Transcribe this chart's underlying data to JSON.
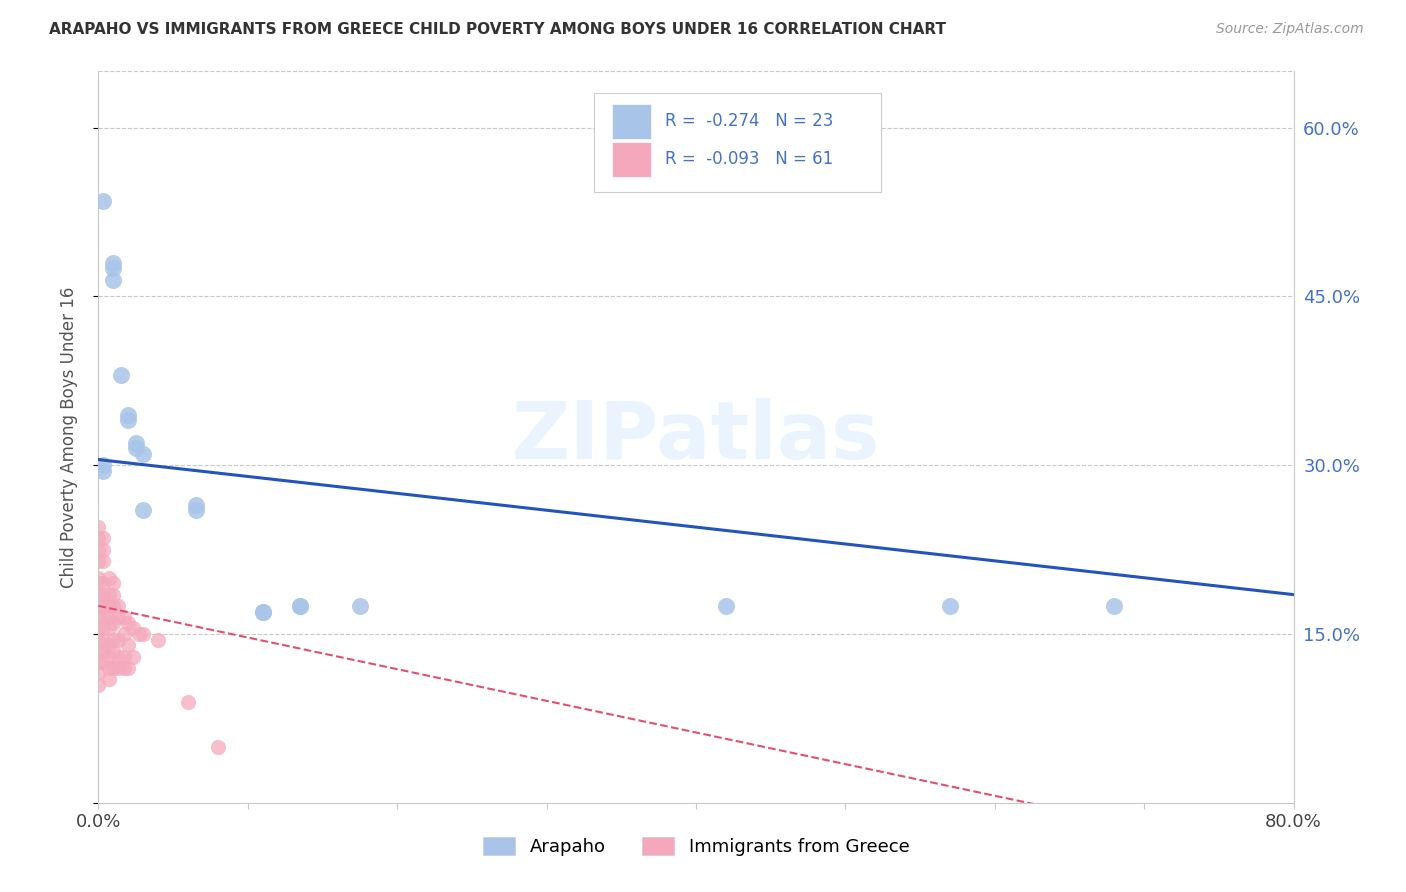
{
  "title": "ARAPAHO VS IMMIGRANTS FROM GREECE CHILD POVERTY AMONG BOYS UNDER 16 CORRELATION CHART",
  "source": "Source: ZipAtlas.com",
  "ylabel": "Child Poverty Among Boys Under 16",
  "xlim": [
    0,
    0.8
  ],
  "ylim": [
    0,
    0.65
  ],
  "ytick_positions": [
    0.0,
    0.15,
    0.3,
    0.45,
    0.6
  ],
  "ytick_labels": [
    "",
    "15.0%",
    "30.0%",
    "45.0%",
    "60.0%"
  ],
  "arapaho_color": "#a8c4e8",
  "greece_color": "#f5a8bc",
  "arapaho_line_color": "#2255bb",
  "greece_line_color": "#e05070",
  "arapaho_R": -0.274,
  "arapaho_N": 23,
  "greece_R": -0.093,
  "greece_N": 61,
  "watermark": "ZIPatlas",
  "background_color": "#ffffff",
  "grid_color": "#c8c8c8",
  "arapaho_x": [
    0.003,
    0.01,
    0.01,
    0.01,
    0.015,
    0.02,
    0.02,
    0.025,
    0.025,
    0.03,
    0.065,
    0.065,
    0.11,
    0.11,
    0.135,
    0.135,
    0.175,
    0.42,
    0.57,
    0.68,
    0.03,
    0.003,
    0.003
  ],
  "arapaho_y": [
    0.535,
    0.465,
    0.475,
    0.48,
    0.38,
    0.345,
    0.34,
    0.32,
    0.315,
    0.31,
    0.265,
    0.26,
    0.17,
    0.17,
    0.175,
    0.175,
    0.175,
    0.175,
    0.175,
    0.175,
    0.26,
    0.3,
    0.295
  ],
  "greece_x": [
    0.0,
    0.0,
    0.0,
    0.0,
    0.0,
    0.0,
    0.0,
    0.0,
    0.0,
    0.0,
    0.0,
    0.0,
    0.0,
    0.0,
    0.0,
    0.003,
    0.003,
    0.003,
    0.003,
    0.003,
    0.003,
    0.003,
    0.003,
    0.003,
    0.003,
    0.003,
    0.007,
    0.007,
    0.007,
    0.007,
    0.007,
    0.007,
    0.007,
    0.007,
    0.007,
    0.01,
    0.01,
    0.01,
    0.01,
    0.01,
    0.01,
    0.01,
    0.013,
    0.013,
    0.013,
    0.013,
    0.013,
    0.017,
    0.017,
    0.017,
    0.017,
    0.02,
    0.02,
    0.02,
    0.023,
    0.023,
    0.027,
    0.03,
    0.04,
    0.06,
    0.08
  ],
  "greece_y": [
    0.245,
    0.235,
    0.225,
    0.215,
    0.2,
    0.195,
    0.185,
    0.175,
    0.165,
    0.155,
    0.145,
    0.135,
    0.125,
    0.115,
    0.105,
    0.235,
    0.225,
    0.215,
    0.195,
    0.185,
    0.175,
    0.165,
    0.155,
    0.145,
    0.135,
    0.125,
    0.2,
    0.185,
    0.175,
    0.165,
    0.155,
    0.14,
    0.13,
    0.12,
    0.11,
    0.195,
    0.185,
    0.175,
    0.16,
    0.145,
    0.135,
    0.12,
    0.175,
    0.165,
    0.145,
    0.13,
    0.12,
    0.165,
    0.15,
    0.13,
    0.12,
    0.16,
    0.14,
    0.12,
    0.155,
    0.13,
    0.15,
    0.15,
    0.145,
    0.09,
    0.05
  ],
  "legend_label_1": "Arapaho",
  "legend_label_2": "Immigrants from Greece"
}
